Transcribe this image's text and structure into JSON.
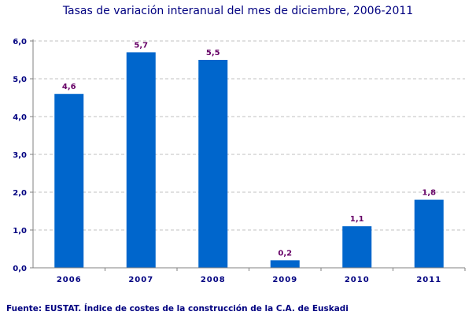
{
  "chart_data": {
    "type": "bar",
    "title": "Tasas de variación interanual del mes de diciembre, 2006-2011",
    "categories": [
      "2006",
      "2007",
      "2008",
      "2009",
      "2010",
      "2011"
    ],
    "values": [
      4.6,
      5.7,
      5.5,
      0.2,
      1.1,
      1.8
    ],
    "data_labels": [
      "4,6",
      "5,7",
      "5,5",
      "0,2",
      "1,1",
      "1,8"
    ],
    "y_ticks": [
      "0,0",
      "1,0",
      "2,0",
      "3,0",
      "4,0",
      "5,0",
      "6,0"
    ],
    "ylim": [
      0,
      6
    ],
    "xlabel": "",
    "ylabel": "",
    "grid": true,
    "legend": "none",
    "colors": {
      "bar": "#0066CC",
      "label": "#660066",
      "axis_text": "#000080",
      "grid": "#C0C0C0"
    }
  },
  "source": "Fuente: EUSTAT. Índice de costes de la construcción de la C.A. de Euskadi"
}
